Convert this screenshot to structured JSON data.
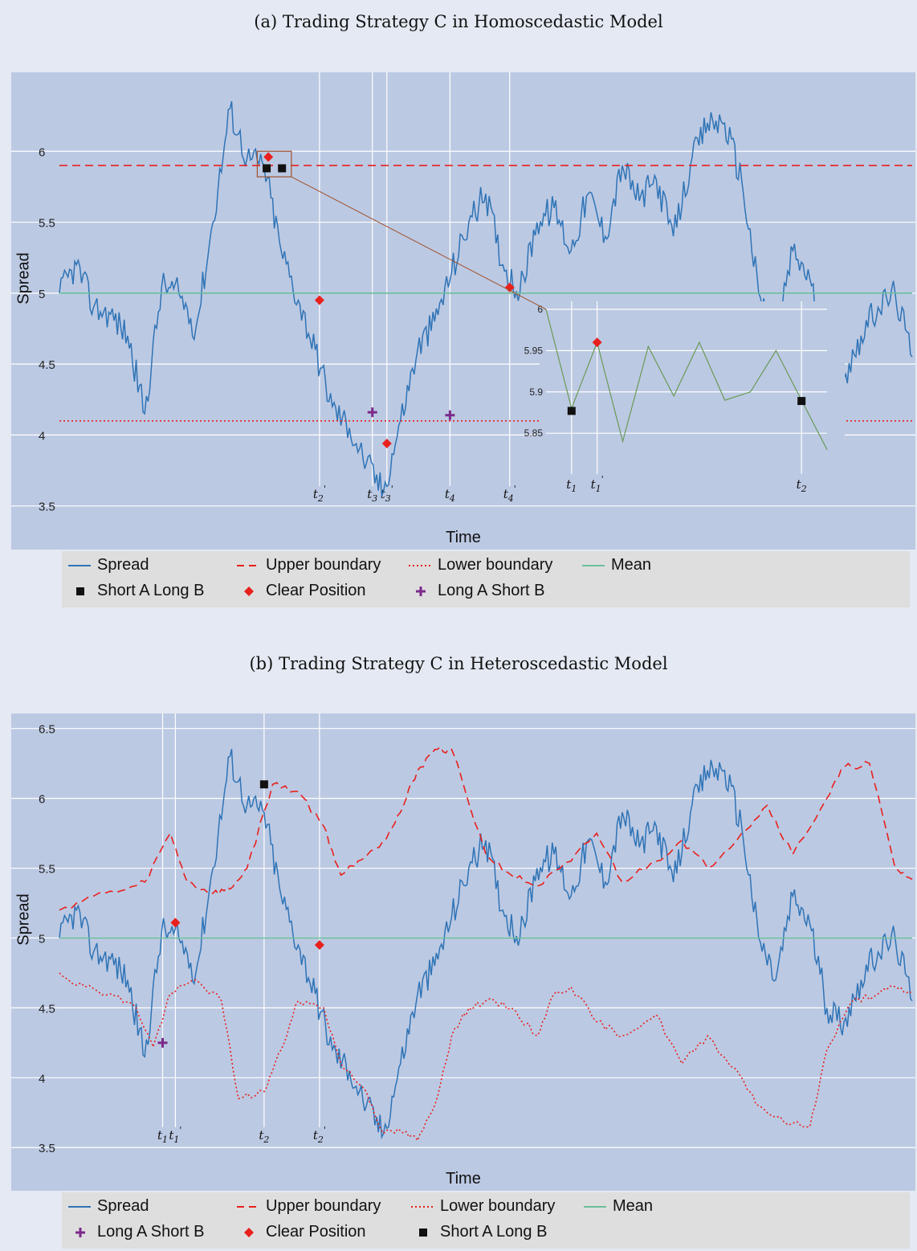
{
  "chart_data": [
    {
      "type": "line",
      "title": "(a) Trading Strategy C in Homoscedastic Model",
      "xlabel": "Time",
      "ylabel": "Spread",
      "ylim": [
        3.3,
        6.5
      ],
      "yticks": [
        "3.5",
        "4",
        "4.5",
        "5",
        "5.5",
        "6"
      ],
      "xlim": [
        0,
        1
      ],
      "series": [
        {
          "name": "Spread",
          "color": "#2f74b6",
          "style": "solid",
          "x": [
            0,
            0.02,
            0.04,
            0.06,
            0.08,
            0.1,
            0.12,
            0.14,
            0.16,
            0.18,
            0.2,
            0.22,
            0.24,
            0.26,
            0.28,
            0.3,
            0.32,
            0.34,
            0.36,
            0.38,
            0.4,
            0.42,
            0.44,
            0.46,
            0.48,
            0.5,
            0.52,
            0.54,
            0.56,
            0.58,
            0.6,
            0.62,
            0.64,
            0.66,
            0.68,
            0.7,
            0.72,
            0.74,
            0.76,
            0.78,
            0.8,
            0.82,
            0.84,
            0.86,
            0.88,
            0.9,
            0.92,
            0.94,
            0.96,
            0.98,
            1
          ],
          "y": [
            5.0,
            5.2,
            4.9,
            4.85,
            4.7,
            4.15,
            5.05,
            5.0,
            4.75,
            5.5,
            6.3,
            5.95,
            5.9,
            5.3,
            4.95,
            4.6,
            4.2,
            4.05,
            3.8,
            3.6,
            4.1,
            4.6,
            4.8,
            5.15,
            5.5,
            5.7,
            5.2,
            5.0,
            5.5,
            5.6,
            5.3,
            5.7,
            5.4,
            5.9,
            5.65,
            5.8,
            5.4,
            5.9,
            6.2,
            6.2,
            5.8,
            5.0,
            4.7,
            5.3,
            5.1,
            4.5,
            4.4,
            4.7,
            4.9,
            5.0,
            4.55
          ]
        },
        {
          "name": "Upper boundary",
          "color": "#e8211d",
          "style": "dashed",
          "x": [
            0,
            1
          ],
          "y": [
            5.9,
            5.9
          ]
        },
        {
          "name": "Lower boundary",
          "color": "#e8211d",
          "style": "dotted",
          "x": [
            0,
            1
          ],
          "y": [
            4.1,
            4.1
          ]
        },
        {
          "name": "Mean",
          "color": "#6dbf9b",
          "style": "solid",
          "x": [
            0,
            1
          ],
          "y": [
            5.0,
            5.0
          ]
        }
      ],
      "markers": [
        {
          "name": "Short A Long B",
          "shape": "square",
          "color": "#111111",
          "points": [
            {
              "x": 0.243,
              "y": 5.88
            },
            {
              "x": 0.261,
              "y": 5.88
            }
          ]
        },
        {
          "name": "Clear Position",
          "shape": "diamond",
          "color": "#e8211d",
          "points": [
            {
              "x": 0.245,
              "y": 5.96
            },
            {
              "x": 0.305,
              "y": 4.95
            },
            {
              "x": 0.384,
              "y": 3.94
            },
            {
              "x": 0.528,
              "y": 5.04
            }
          ]
        },
        {
          "name": "Long A Short B",
          "shape": "plus",
          "color": "#7b2a8a",
          "points": [
            {
              "x": 0.367,
              "y": 4.16
            },
            {
              "x": 0.458,
              "y": 4.14
            }
          ]
        }
      ],
      "event_lines": [
        {
          "label": "t2'",
          "x": 0.305
        },
        {
          "label": "t3",
          "x": 0.367
        },
        {
          "label": "t3'",
          "x": 0.384
        },
        {
          "label": "t4",
          "x": 0.458
        },
        {
          "label": "t4'",
          "x": 0.528
        }
      ],
      "inset": {
        "ylim": [
          5.82,
          6.0
        ],
        "yticks": [
          "5.85",
          "5.9",
          "5.95",
          "6"
        ],
        "x": [
          0,
          1,
          2,
          3,
          4,
          5,
          6,
          7,
          8,
          9,
          10,
          11
        ],
        "y": [
          6.0,
          5.88,
          5.96,
          5.84,
          5.955,
          5.895,
          5.96,
          5.89,
          5.9,
          5.95,
          5.89,
          5.83
        ],
        "event_lines": [
          {
            "label": "t1",
            "x": 1
          },
          {
            "label": "t1'",
            "x": 2
          },
          {
            "label": "t2",
            "x": 10
          }
        ],
        "short_points": [
          {
            "x": 1,
            "y": 5.877
          },
          {
            "x": 10,
            "y": 5.889
          }
        ],
        "clear_points": [
          {
            "x": 2,
            "y": 5.96
          }
        ]
      },
      "legend": {
        "placement": "bottom",
        "entries": [
          "Spread",
          "Upper boundary",
          "Lower boundary",
          "Mean",
          "Short A Long B",
          "Clear Position",
          "Long A Short B"
        ]
      }
    },
    {
      "type": "line",
      "title": "(b) Trading Strategy C in Heteroscedastic Model",
      "xlabel": "Time",
      "ylabel": "Spread",
      "ylim": [
        3.3,
        6.55
      ],
      "yticks": [
        "3.5",
        "4",
        "4.5",
        "5",
        "5.5",
        "6",
        "6.5"
      ],
      "xlim": [
        0,
        1
      ],
      "series": [
        {
          "name": "Spread",
          "color": "#2f74b6",
          "style": "solid",
          "x": [
            0,
            0.02,
            0.04,
            0.06,
            0.08,
            0.1,
            0.12,
            0.14,
            0.16,
            0.18,
            0.2,
            0.22,
            0.24,
            0.26,
            0.28,
            0.3,
            0.32,
            0.34,
            0.36,
            0.38,
            0.4,
            0.42,
            0.44,
            0.46,
            0.48,
            0.5,
            0.52,
            0.54,
            0.56,
            0.58,
            0.6,
            0.62,
            0.64,
            0.66,
            0.68,
            0.7,
            0.72,
            0.74,
            0.76,
            0.78,
            0.8,
            0.82,
            0.84,
            0.86,
            0.88,
            0.9,
            0.92,
            0.94,
            0.96,
            0.98,
            1
          ],
          "y": [
            5.0,
            5.2,
            4.9,
            4.85,
            4.7,
            4.15,
            5.05,
            5.0,
            4.75,
            5.5,
            6.3,
            5.95,
            5.9,
            5.3,
            4.95,
            4.6,
            4.2,
            4.05,
            3.8,
            3.6,
            4.1,
            4.6,
            4.8,
            5.15,
            5.5,
            5.7,
            5.2,
            5.0,
            5.5,
            5.6,
            5.3,
            5.7,
            5.4,
            5.9,
            5.65,
            5.8,
            5.4,
            5.9,
            6.2,
            6.2,
            5.8,
            5.0,
            4.7,
            5.3,
            5.1,
            4.5,
            4.4,
            4.7,
            4.9,
            5.0,
            4.55
          ]
        },
        {
          "name": "Upper boundary",
          "color": "#e8211d",
          "style": "dashed",
          "x": [
            0,
            0.04,
            0.08,
            0.1,
            0.13,
            0.15,
            0.18,
            0.2,
            0.22,
            0.25,
            0.28,
            0.31,
            0.33,
            0.35,
            0.38,
            0.4,
            0.42,
            0.44,
            0.46,
            0.5,
            0.53,
            0.56,
            0.6,
            0.63,
            0.66,
            0.7,
            0.73,
            0.76,
            0.8,
            0.83,
            0.86,
            0.9,
            0.92,
            0.95,
            0.98,
            1
          ],
          "y": [
            5.2,
            5.3,
            5.35,
            5.4,
            5.75,
            5.4,
            5.32,
            5.35,
            5.5,
            6.1,
            6.05,
            5.8,
            5.45,
            5.55,
            5.7,
            5.9,
            6.2,
            6.35,
            6.35,
            5.6,
            5.45,
            5.37,
            5.55,
            5.75,
            5.4,
            5.55,
            5.7,
            5.5,
            5.75,
            5.95,
            5.6,
            6.0,
            6.22,
            6.25,
            5.5,
            5.42
          ]
        },
        {
          "name": "Lower boundary",
          "color": "#e8211d",
          "style": "dotted",
          "x": [
            0,
            0.03,
            0.06,
            0.09,
            0.11,
            0.13,
            0.16,
            0.19,
            0.21,
            0.24,
            0.26,
            0.28,
            0.31,
            0.33,
            0.36,
            0.38,
            0.4,
            0.42,
            0.44,
            0.46,
            0.48,
            0.5,
            0.53,
            0.56,
            0.58,
            0.6,
            0.63,
            0.66,
            0.7,
            0.73,
            0.76,
            0.8,
            0.82,
            0.85,
            0.88,
            0.9,
            0.93,
            0.96,
            0.98,
            1
          ],
          "y": [
            4.75,
            4.65,
            4.6,
            4.5,
            4.22,
            4.6,
            4.7,
            4.55,
            3.85,
            3.9,
            4.2,
            4.55,
            4.5,
            4.1,
            3.9,
            3.6,
            3.62,
            3.55,
            3.8,
            4.3,
            4.5,
            4.55,
            4.5,
            4.3,
            4.6,
            4.65,
            4.4,
            4.3,
            4.45,
            4.1,
            4.3,
            4.0,
            3.8,
            3.68,
            3.65,
            4.2,
            4.55,
            4.6,
            4.65,
            4.6
          ]
        },
        {
          "name": "Mean",
          "color": "#6dbf9b",
          "style": "solid",
          "x": [
            0,
            1
          ],
          "y": [
            5.0,
            5.0
          ]
        }
      ],
      "markers": [
        {
          "name": "Long A Short B",
          "shape": "plus",
          "color": "#7b2a8a",
          "points": [
            {
              "x": 0.121,
              "y": 4.25
            }
          ]
        },
        {
          "name": "Clear Position",
          "shape": "diamond",
          "color": "#e8211d",
          "points": [
            {
              "x": 0.136,
              "y": 5.11
            },
            {
              "x": 0.305,
              "y": 4.95
            }
          ]
        },
        {
          "name": "Short A Long B",
          "shape": "square",
          "color": "#111111",
          "points": [
            {
              "x": 0.24,
              "y": 6.1
            }
          ]
        }
      ],
      "event_lines": [
        {
          "label": "t1",
          "x": 0.121
        },
        {
          "label": "t1'",
          "x": 0.136
        },
        {
          "label": "t2",
          "x": 0.24
        },
        {
          "label": "t2'",
          "x": 0.305
        }
      ],
      "legend": {
        "placement": "bottom",
        "entries": [
          "Spread",
          "Upper boundary",
          "Lower boundary",
          "Mean",
          "Long A Short B",
          "Clear Position",
          "Short A Long B"
        ]
      }
    }
  ]
}
